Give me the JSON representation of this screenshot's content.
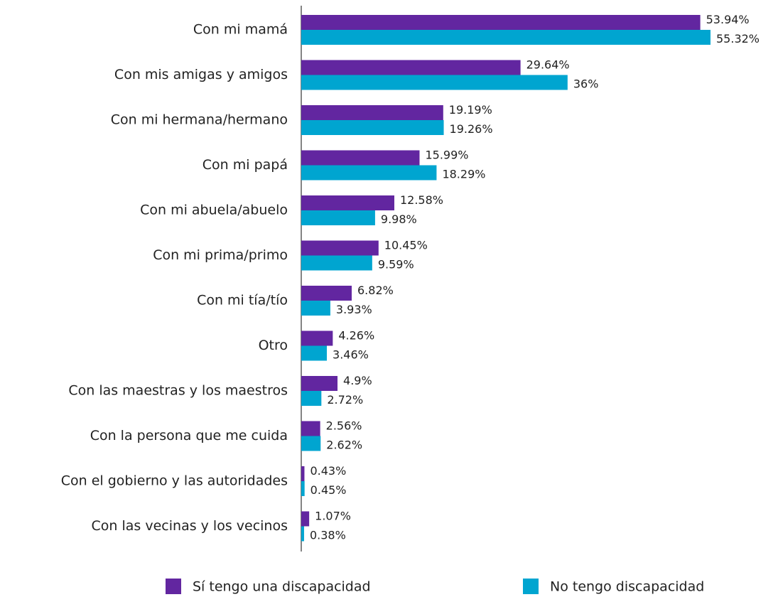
{
  "chart_data": {
    "type": "bar",
    "orientation": "horizontal",
    "categories": [
      "Con mi mamá",
      "Con mis amigas y amigos",
      "Con mi hermana/hermano",
      "Con mi papá",
      "Con mi abuela/abuelo",
      "Con mi prima/primo",
      "Con mi tía/tío",
      "Otro",
      "Con las maestras y los maestros",
      "Con la persona que me cuida",
      "Con el gobierno y las autoridades",
      "Con las vecinas y los vecinos"
    ],
    "series": [
      {
        "name": "Sí tengo una discapacidad",
        "color": "#6226a0",
        "values": [
          53.94,
          29.64,
          19.19,
          15.99,
          12.58,
          10.45,
          6.82,
          4.26,
          4.9,
          2.56,
          0.43,
          1.07
        ],
        "value_labels": [
          "53.94%",
          "29.64%",
          "19.19%",
          "15.99%",
          "12.58%",
          "10.45%",
          "6.82%",
          "4.26%",
          "4.9%",
          "2.56%",
          "0.43%",
          "1.07%"
        ]
      },
      {
        "name": "No tengo discapacidad",
        "color": "#00a5d0",
        "values": [
          55.32,
          36,
          19.26,
          18.29,
          9.98,
          9.59,
          3.93,
          3.46,
          2.72,
          2.62,
          0.45,
          0.38
        ],
        "value_labels": [
          "55.32%",
          "36%",
          "19.26%",
          "18.29%",
          "9.98%",
          "9.59%",
          "3.93%",
          "3.46%",
          "2.72%",
          "2.62%",
          "0.45%",
          "0.38%"
        ]
      }
    ],
    "legend": "bottom"
  }
}
